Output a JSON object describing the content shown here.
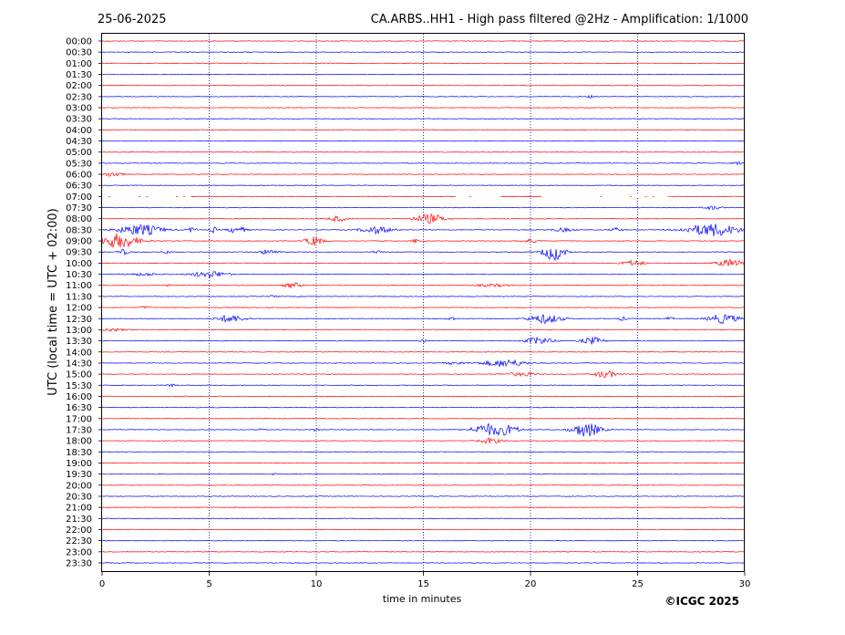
{
  "header": {
    "date": "25-06-2025",
    "title": "CA.ARBS..HH1 - High pass filtered @2Hz - Amplification: 1/1000"
  },
  "copyright": "©ICGC 2025",
  "chart_data": {
    "type": "line",
    "title": "CA.ARBS..HH1 - High pass filtered @2Hz - Amplification: 1/1000",
    "xlabel": "time in minutes",
    "ylabel": "UTC (local time = UTC + 02:00)",
    "xlim": [
      0,
      30
    ],
    "x_ticks": [
      "0",
      "5",
      "10",
      "15",
      "20",
      "25",
      "30"
    ],
    "grid": "vertical dotted lines at 5-minute intervals",
    "trace_colors": [
      "#ff0000",
      "#0000ff"
    ],
    "rows": [
      {
        "label": "00:00",
        "events": []
      },
      {
        "label": "00:30",
        "events": []
      },
      {
        "label": "01:00",
        "events": []
      },
      {
        "label": "01:30",
        "events": []
      },
      {
        "label": "02:00",
        "events": []
      },
      {
        "label": "02:30",
        "events": [
          {
            "t": 22.8,
            "w": 0.3,
            "a": 1.5
          }
        ]
      },
      {
        "label": "03:00",
        "events": []
      },
      {
        "label": "03:30",
        "events": []
      },
      {
        "label": "04:00",
        "events": []
      },
      {
        "label": "04:30",
        "events": []
      },
      {
        "label": "05:00",
        "events": []
      },
      {
        "label": "05:30",
        "events": [
          {
            "t": 29.7,
            "w": 0.4,
            "a": 1.5
          }
        ]
      },
      {
        "label": "06:00",
        "events": [
          {
            "t": 0.5,
            "w": 0.8,
            "a": 3
          }
        ]
      },
      {
        "label": "06:30",
        "events": []
      },
      {
        "label": "07:00",
        "events": [],
        "gaps": [
          [
            0,
            4.2
          ],
          [
            16.5,
            18.6
          ],
          [
            20.5,
            26.5
          ]
        ]
      },
      {
        "label": "07:30",
        "events": [
          {
            "t": 28.5,
            "w": 0.8,
            "a": 2
          }
        ]
      },
      {
        "label": "08:00",
        "events": [
          {
            "t": 11.0,
            "w": 0.8,
            "a": 3
          },
          {
            "t": 15.3,
            "w": 1.4,
            "a": 5
          }
        ]
      },
      {
        "label": "08:30",
        "events": [
          {
            "t": 1.8,
            "w": 2.0,
            "a": 6
          },
          {
            "t": 4.2,
            "w": 0.4,
            "a": 3
          },
          {
            "t": 5.2,
            "w": 0.3,
            "a": 3
          },
          {
            "t": 6.3,
            "w": 0.8,
            "a": 4
          },
          {
            "t": 12.8,
            "w": 1.4,
            "a": 4
          },
          {
            "t": 21.5,
            "w": 1.0,
            "a": 2
          },
          {
            "t": 24.0,
            "w": 0.6,
            "a": 2
          },
          {
            "t": 28.5,
            "w": 2.4,
            "a": 7
          }
        ]
      },
      {
        "label": "09:00",
        "events": [
          {
            "t": 0.8,
            "w": 1.8,
            "a": 8
          },
          {
            "t": 9.9,
            "w": 0.8,
            "a": 5
          },
          {
            "t": 14.6,
            "w": 0.3,
            "a": 2
          },
          {
            "t": 20.0,
            "w": 0.8,
            "a": 2
          }
        ]
      },
      {
        "label": "09:30",
        "events": [
          {
            "t": 1.0,
            "w": 0.5,
            "a": 3
          },
          {
            "t": 3.0,
            "w": 0.4,
            "a": 2
          },
          {
            "t": 7.8,
            "w": 0.8,
            "a": 3
          },
          {
            "t": 12.9,
            "w": 0.4,
            "a": 2
          },
          {
            "t": 21.1,
            "w": 1.0,
            "a": 9
          }
        ]
      },
      {
        "label": "10:00",
        "events": [
          {
            "t": 24.8,
            "w": 1.0,
            "a": 3
          },
          {
            "t": 29.3,
            "w": 1.2,
            "a": 4
          }
        ]
      },
      {
        "label": "10:30",
        "events": [
          {
            "t": 2.0,
            "w": 1.5,
            "a": 1.5
          },
          {
            "t": 5.0,
            "w": 1.5,
            "a": 4
          }
        ]
      },
      {
        "label": "11:00",
        "events": [
          {
            "t": 8.9,
            "w": 0.8,
            "a": 3
          },
          {
            "t": 3.0,
            "w": 0.3,
            "a": 1.5
          },
          {
            "t": 18.2,
            "w": 1.5,
            "a": 1.5
          }
        ]
      },
      {
        "label": "11:30",
        "events": [
          {
            "t": 8.0,
            "w": 0.4,
            "a": 1.5
          }
        ]
      },
      {
        "label": "12:00",
        "events": [
          {
            "t": 2.0,
            "w": 0.4,
            "a": 1.5
          }
        ]
      },
      {
        "label": "12:30",
        "events": [
          {
            "t": 6.0,
            "w": 1.3,
            "a": 4
          },
          {
            "t": 16.3,
            "w": 0.3,
            "a": 3
          },
          {
            "t": 20.7,
            "w": 1.5,
            "a": 5
          },
          {
            "t": 24.3,
            "w": 0.4,
            "a": 2
          },
          {
            "t": 26.5,
            "w": 0.3,
            "a": 2
          },
          {
            "t": 29.0,
            "w": 1.4,
            "a": 5
          }
        ]
      },
      {
        "label": "13:00",
        "events": [
          {
            "t": 0.5,
            "w": 1.0,
            "a": 1.5
          }
        ]
      },
      {
        "label": "13:30",
        "events": [
          {
            "t": 20.4,
            "w": 1.2,
            "a": 4
          },
          {
            "t": 22.9,
            "w": 1.0,
            "a": 4
          },
          {
            "t": 15.0,
            "w": 0.3,
            "a": 1.5
          }
        ]
      },
      {
        "label": "14:00",
        "events": []
      },
      {
        "label": "14:30",
        "events": [
          {
            "t": 18.8,
            "w": 2.0,
            "a": 4
          },
          {
            "t": 16.5,
            "w": 1.0,
            "a": 1.5
          }
        ]
      },
      {
        "label": "15:00",
        "events": [
          {
            "t": 23.5,
            "w": 1.0,
            "a": 4
          },
          {
            "t": 19.6,
            "w": 1.5,
            "a": 2
          }
        ]
      },
      {
        "label": "15:30",
        "events": [
          {
            "t": 3.2,
            "w": 0.4,
            "a": 1.5
          }
        ]
      },
      {
        "label": "16:00",
        "events": []
      },
      {
        "label": "16:30",
        "events": []
      },
      {
        "label": "17:00",
        "events": []
      },
      {
        "label": "17:30",
        "events": [
          {
            "t": 17.9,
            "w": 1.3,
            "a": 6
          },
          {
            "t": 18.9,
            "w": 1.2,
            "a": 5
          },
          {
            "t": 22.6,
            "w": 1.3,
            "a": 8
          },
          {
            "t": 10.0,
            "w": 0.4,
            "a": 1.5
          },
          {
            "t": 7.5,
            "w": 0.3,
            "a": 1.5
          }
        ]
      },
      {
        "label": "18:00",
        "events": [
          {
            "t": 18.1,
            "w": 1.0,
            "a": 3
          }
        ]
      },
      {
        "label": "18:30",
        "events": []
      },
      {
        "label": "19:00",
        "events": []
      },
      {
        "label": "19:30",
        "events": [
          {
            "t": 8.0,
            "w": 0.2,
            "a": 1.5
          }
        ]
      },
      {
        "label": "20:00",
        "events": []
      },
      {
        "label": "20:30",
        "events": []
      },
      {
        "label": "21:00",
        "events": []
      },
      {
        "label": "21:30",
        "events": []
      },
      {
        "label": "22:00",
        "events": []
      },
      {
        "label": "22:30",
        "events": []
      },
      {
        "label": "23:00",
        "events": []
      },
      {
        "label": "23:30",
        "events": []
      }
    ]
  }
}
